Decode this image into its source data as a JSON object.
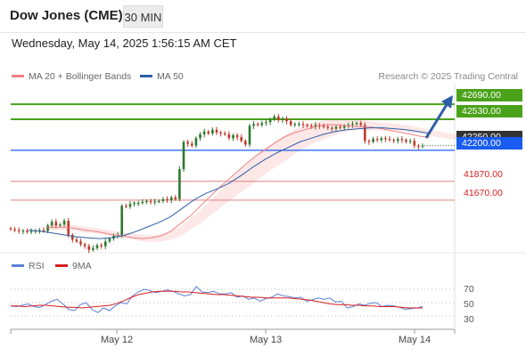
{
  "header": {
    "title": "Dow Jones (CME)",
    "timeframe": "30 MIN"
  },
  "datetime": "Wednesday, May 14, 2025 1:56:15 AM CET",
  "legend": {
    "ma20_label": "MA 20 + Bollinger Bands",
    "ma50_label": "MA 50",
    "credit": "Research © 2025 Trading Central",
    "ma20_color": "#f08080",
    "ma50_color": "#2d5fa8"
  },
  "levels": {
    "resistance2": "42690.00",
    "resistance1": "42530.00",
    "pivot": "42200.00",
    "last_price": "42250.00",
    "support1": "41870.00",
    "support2": "41670.00",
    "green_color": "#4aa21a",
    "blue_color": "#1a5cf0",
    "red_color": "#d71e1e"
  },
  "rsi_legend": {
    "rsi_label": "RSI",
    "ma_label": "9MA",
    "rsi_color": "#5b7fd6",
    "ma_color": "#d71e1e"
  },
  "rsi_ticks": [
    "70",
    "50",
    "30"
  ],
  "x_labels": [
    "May 12",
    "May 13",
    "May 14"
  ],
  "chart_data": [
    {
      "type": "candlestick",
      "title": "Dow Jones (CME) 30 MIN",
      "ylim": [
        41100,
        42900
      ],
      "series": [
        {
          "name": "Close",
          "values": [
            41360,
            41350,
            41340,
            41345,
            41330,
            41340,
            41345,
            41350,
            41340,
            41400,
            41440,
            41400,
            41410,
            41450,
            41300,
            41250,
            41230,
            41200,
            41180,
            41140,
            41160,
            41190,
            41180,
            41230,
            41260,
            41290,
            41300,
            41610,
            41600,
            41630,
            41640,
            41640,
            41650,
            41660,
            41650,
            41655,
            41660,
            41680,
            41670,
            41700,
            41680,
            42000,
            42290,
            42270,
            42250,
            42330,
            42370,
            42400,
            42380,
            42420,
            42390,
            42380,
            42370,
            42330,
            42360,
            42340,
            42300,
            42260,
            42460,
            42480,
            42470,
            42490,
            42500,
            42530,
            42560,
            42520,
            42540,
            42510,
            42470,
            42480,
            42480,
            42470,
            42460,
            42450,
            42470,
            42460,
            42450,
            42440,
            42430,
            42450,
            42440,
            42460,
            42470,
            42480,
            42490,
            42470,
            42300,
            42290,
            42320,
            42310,
            42330,
            42320,
            42310,
            42300,
            42320,
            42310,
            42290,
            42300,
            42250,
            42240,
            42250
          ]
        },
        {
          "name": "MA 20",
          "values": [
            41380,
            41380,
            41380,
            41370,
            41350,
            41340,
            41320,
            41300,
            41290,
            41270,
            41260,
            41270,
            41290,
            41340,
            41420,
            41500,
            41600,
            41700,
            41800,
            41890,
            41980,
            42070,
            42150,
            42220,
            42290,
            42350,
            42390,
            42420,
            42450,
            42470,
            42475,
            42465,
            42455,
            42450,
            42445,
            42430,
            42410,
            42390,
            42370,
            42350,
            42340
          ]
        },
        {
          "name": "MA 50",
          "values": [
            41350,
            41340,
            41320,
            41300,
            41280,
            41270,
            41260,
            41270,
            41290,
            41330,
            41380,
            41430,
            41490,
            41580,
            41670,
            41740,
            41790,
            41850,
            41930,
            42020,
            42100,
            42170,
            42230,
            42290,
            42330,
            42370,
            42400,
            42420,
            42430,
            42440,
            42440,
            42430,
            42420,
            42400,
            42380
          ]
        }
      ],
      "levels": {
        "resistance2": 42690,
        "resistance1": 42530,
        "pivot": 42200,
        "support1": 41870,
        "support2": 41670
      },
      "x_labels": [
        "May 12",
        "May 13",
        "May 14"
      ]
    },
    {
      "type": "line",
      "title": "RSI",
      "ylim": [
        10,
        90
      ],
      "yticks": [
        70,
        50,
        30
      ],
      "series": [
        {
          "name": "RSI",
          "values": [
            45,
            44,
            46,
            48,
            44,
            43,
            47,
            52,
            55,
            48,
            40,
            38,
            47,
            50,
            40,
            35,
            42,
            38,
            45,
            50,
            48,
            60,
            66,
            70,
            68,
            65,
            67,
            69,
            67,
            63,
            60,
            62,
            74,
            66,
            65,
            67,
            63,
            63,
            65,
            58,
            60,
            55,
            57,
            52,
            56,
            58,
            63,
            60,
            59,
            57,
            58,
            52,
            54,
            57,
            55,
            57,
            51,
            52,
            42,
            44,
            48,
            46,
            49,
            50,
            44,
            46,
            45,
            43,
            40,
            41,
            42,
            44
          ]
        },
        {
          "name": "9MA",
          "values": [
            45,
            45,
            44,
            45,
            46,
            46,
            45,
            44,
            43,
            43,
            42,
            43,
            44,
            45,
            46,
            49,
            53,
            58,
            62,
            64,
            66,
            67,
            67,
            67,
            66,
            66,
            65,
            64,
            63,
            62,
            62,
            61,
            60,
            59,
            58,
            58,
            57,
            57,
            57,
            57,
            56,
            55,
            54,
            52,
            50,
            48,
            47,
            47,
            46,
            46,
            45,
            45,
            44,
            44,
            44,
            43,
            42,
            42,
            42
          ]
        }
      ]
    }
  ]
}
